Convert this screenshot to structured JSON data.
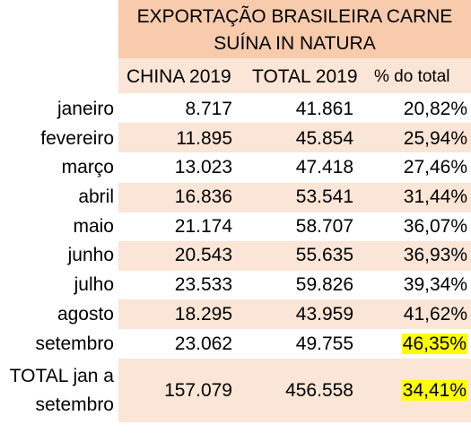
{
  "title": {
    "line1": "EXPORTAÇÃO BRASILEIRA CARNE",
    "line2": "SUÍNA IN NATURA"
  },
  "headers": [
    "CHINA 2019",
    "TOTAL 2019",
    "% do total"
  ],
  "highlight_color": "#ffff00",
  "band_color": "#fbe5d6",
  "title_color": "#f8cbad",
  "rows": [
    {
      "month": "janeiro",
      "china": "8.717",
      "total": "41.861",
      "pct": "20,82%"
    },
    {
      "month": "fevereiro",
      "china": "11.895",
      "total": "45.854",
      "pct": "25,94%"
    },
    {
      "month": "março",
      "china": "13.023",
      "total": "47.418",
      "pct": "27,46%"
    },
    {
      "month": "abril",
      "china": "16.836",
      "total": "53.541",
      "pct": "31,44%"
    },
    {
      "month": "maio",
      "china": "21.174",
      "total": "58.707",
      "pct": "36,07%"
    },
    {
      "month": "junho",
      "china": "20.543",
      "total": "55.635",
      "pct": "36,93%"
    },
    {
      "month": "julho",
      "china": "23.533",
      "total": "59.826",
      "pct": "39,34%"
    },
    {
      "month": "agosto",
      "china": "18.295",
      "total": "43.959",
      "pct": "41,62%"
    },
    {
      "month": "setembro",
      "china": "23.062",
      "total": "49.755",
      "pct": "46,35%"
    }
  ],
  "total_row": {
    "label_line1": "TOTAL jan a",
    "label_line2": "setembro",
    "china": "157.079",
    "total": "456.558",
    "pct": "34,41%"
  }
}
